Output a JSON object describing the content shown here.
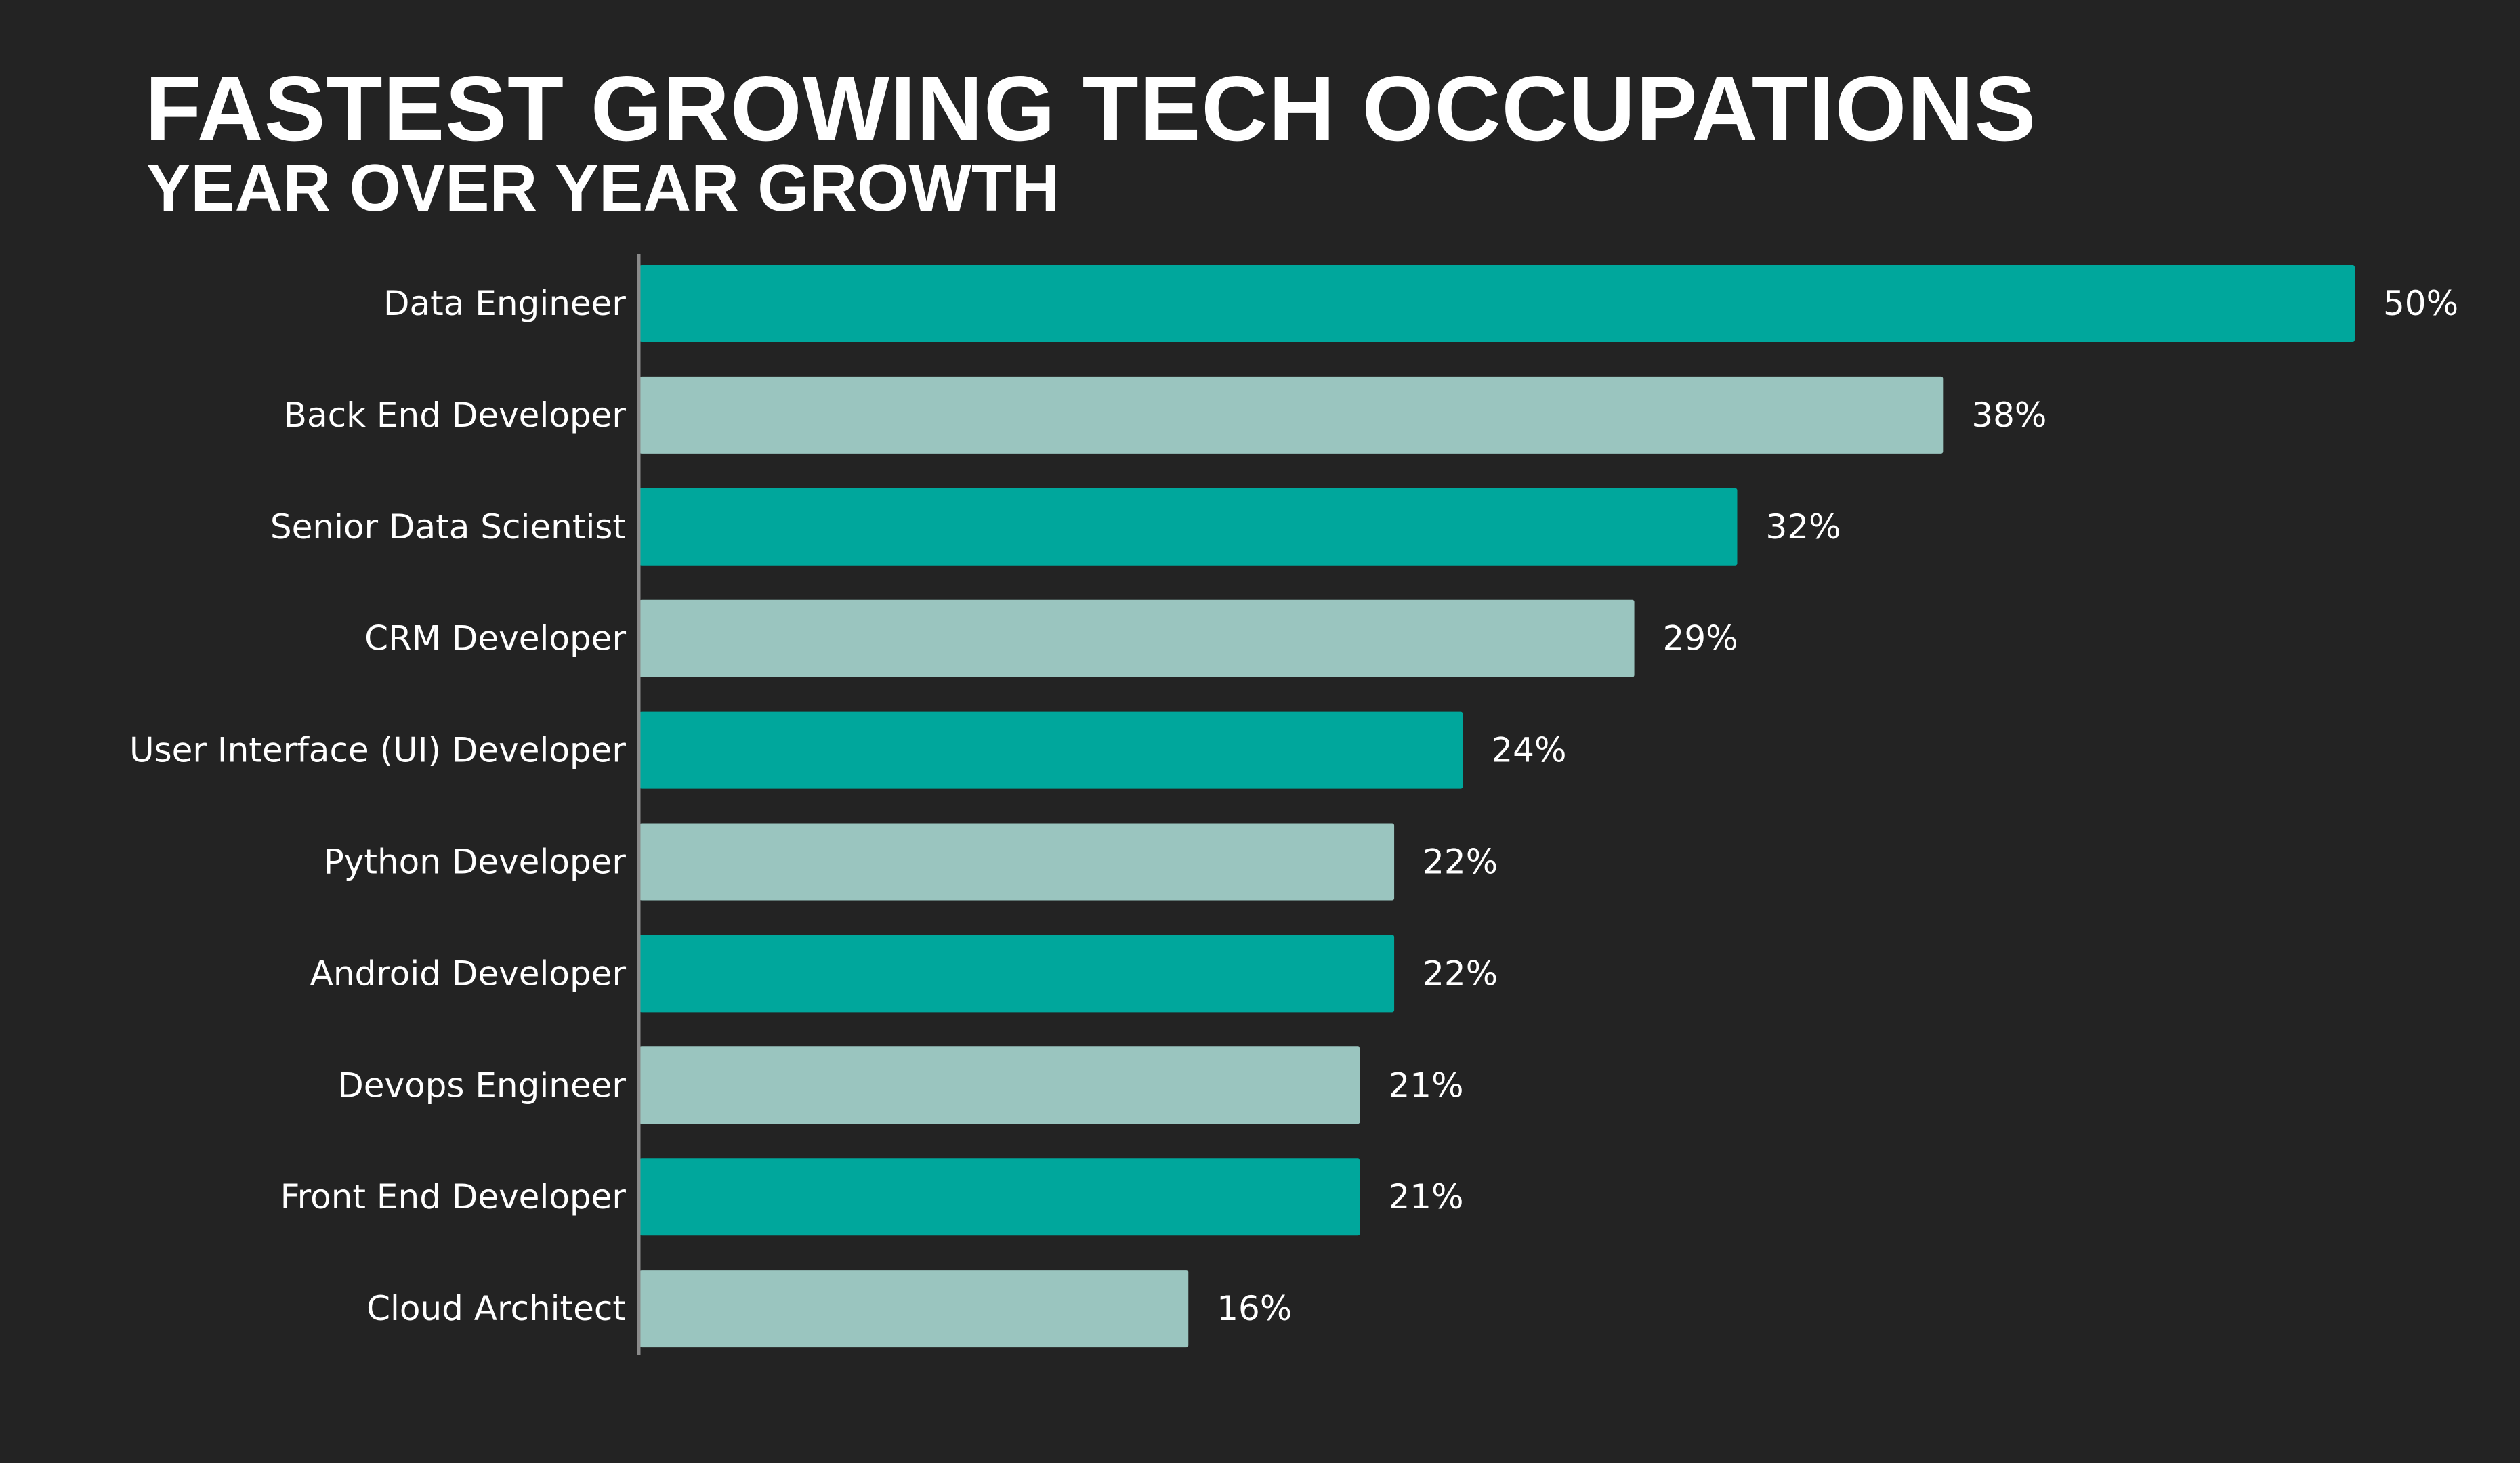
{
  "chart_data": {
    "type": "bar",
    "orientation": "horizontal",
    "title": "FASTEST GROWING TECH OCCUPATIONS",
    "subtitle": "YEAR OVER YEAR GROWTH",
    "xlabel": "",
    "ylabel": "",
    "categories": [
      "Data Engineer",
      "Back End Developer",
      "Senior Data Scientist",
      "CRM Developer",
      "User Interface (UI) Developer",
      "Python Developer",
      "Android Developer",
      "Devops Engineer",
      "Front End Developer",
      "Cloud Architect"
    ],
    "values": [
      50,
      38,
      32,
      29,
      24,
      22,
      22,
      21,
      21,
      16
    ],
    "value_labels": [
      "50%",
      "38%",
      "32%",
      "29%",
      "24%",
      "22%",
      "22%",
      "21%",
      "21%",
      "16%"
    ],
    "xlim": [
      0,
      50
    ],
    "grid": false,
    "legend": "none",
    "colors": {
      "background": "#232323",
      "primary": "#00A79C",
      "secondary": "#9AC5BF",
      "axis": "#8a8a8a",
      "text": "#ffffff"
    },
    "color_pattern": [
      "primary",
      "secondary"
    ]
  }
}
